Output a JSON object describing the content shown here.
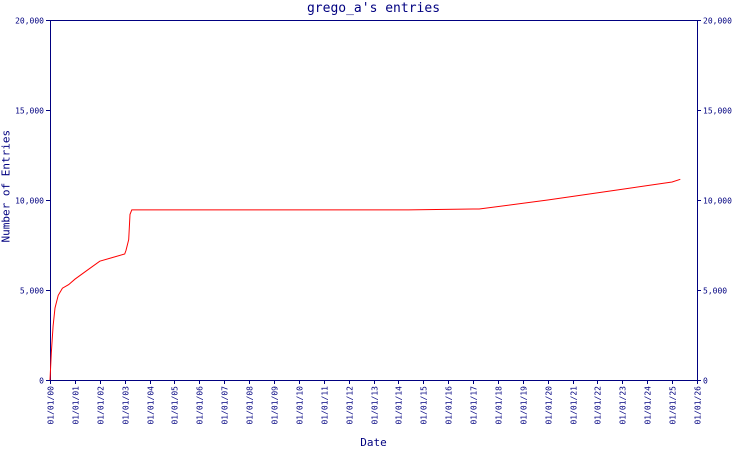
{
  "chart_data": {
    "type": "line",
    "title": "grego_a's entries",
    "xlabel": "Date",
    "ylabel": "Number of Entries",
    "x_tick_labels": [
      "01/01/00",
      "01/01/01",
      "01/01/02",
      "01/01/03",
      "01/01/04",
      "01/01/05",
      "01/01/06",
      "01/01/07",
      "01/01/08",
      "01/01/09",
      "01/01/10",
      "01/01/11",
      "01/01/12",
      "01/01/13",
      "01/01/14",
      "01/01/15",
      "01/01/16",
      "01/01/17",
      "01/01/18",
      "01/01/19",
      "01/01/20",
      "01/01/21",
      "01/01/22",
      "01/01/23",
      "01/01/24",
      "01/01/25",
      "01/01/26"
    ],
    "y_ticks": [
      0,
      5000,
      10000,
      15000,
      20000
    ],
    "y_tick_labels": [
      "0",
      "5,000",
      "10,000",
      "15,000",
      "20,000"
    ],
    "xlim": [
      "2000-01-01",
      "2026-01-01"
    ],
    "ylim": [
      0,
      20000
    ],
    "grid": false,
    "line_color": "#ff0000",
    "axis_color": "#000080",
    "series": [
      {
        "x": [
          "2000-01-01",
          "2000-01-20",
          "2000-02-15",
          "2000-03-15",
          "2000-05-01",
          "2000-07-01",
          "2000-10-01",
          "2001-01-01",
          "2001-07-01",
          "2002-01-01",
          "2002-07-01",
          "2003-01-01",
          "2003-01-20",
          "2003-03-01",
          "2003-03-20",
          "2003-04-15",
          "2006-01-01",
          "2010-01-01",
          "2014-06-01",
          "2017-01-01",
          "2017-04-01",
          "2020-01-01",
          "2023-01-01",
          "2025-01-01",
          "2025-05-01"
        ],
        "y": [
          0,
          1500,
          3000,
          4000,
          4700,
          5100,
          5300,
          5600,
          6100,
          6600,
          6800,
          7000,
          7200,
          7800,
          9200,
          9450,
          9450,
          9450,
          9450,
          9500,
          9500,
          10000,
          10600,
          11000,
          11150
        ]
      }
    ]
  }
}
